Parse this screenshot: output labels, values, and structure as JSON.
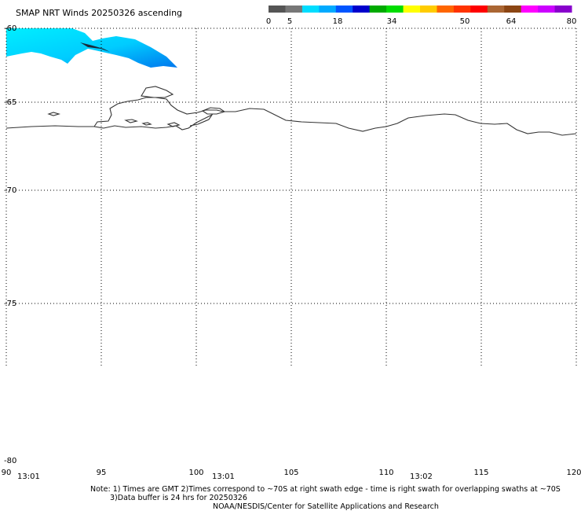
{
  "title": "SMAP NRT Winds 20250326 ascending",
  "colorbar": {
    "tick_labels": [
      "0",
      "5",
      "18",
      "34",
      "50",
      "64",
      "80"
    ],
    "colors": [
      "#555555",
      "#777777",
      "#00ddff",
      "#00aaff",
      "#0055ff",
      "#0000cc",
      "#00aa00",
      "#00dd00",
      "#ffff00",
      "#ffcc00",
      "#ff6600",
      "#ff3300",
      "#ff0000",
      "#aa6633",
      "#8b4513",
      "#ff00ff",
      "#cc00ff",
      "#8800cc"
    ]
  },
  "lat_labels": [
    "-60",
    "-65",
    "-70",
    "-75",
    "-80"
  ],
  "lon_labels": [
    "90",
    "95",
    "100",
    "105",
    "110",
    "115",
    "120"
  ],
  "time_labels": [
    "13:01",
    "13:01",
    "13:02"
  ],
  "notes": {
    "line1": "Note: 1) Times are GMT 2)Times correspond to ~70S at right swath edge - time is right swath for overlapping swaths at ~70S",
    "line2": "3)Data buffer is 24 hrs for 20250326",
    "line3": "NOAA/NESDIS/Center for Satellite Applications and Research"
  }
}
